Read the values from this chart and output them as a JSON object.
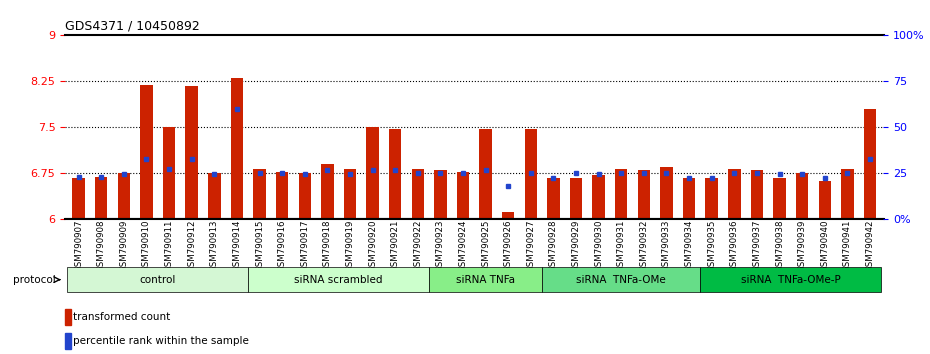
{
  "title": "GDS4371 / 10450892",
  "samples": [
    "GSM790907",
    "GSM790908",
    "GSM790909",
    "GSM790910",
    "GSM790911",
    "GSM790912",
    "GSM790913",
    "GSM790914",
    "GSM790915",
    "GSM790916",
    "GSM790917",
    "GSM790918",
    "GSM790919",
    "GSM790920",
    "GSM790921",
    "GSM790922",
    "GSM790923",
    "GSM790924",
    "GSM790925",
    "GSM790926",
    "GSM790927",
    "GSM790928",
    "GSM790929",
    "GSM790930",
    "GSM790931",
    "GSM790932",
    "GSM790933",
    "GSM790934",
    "GSM790935",
    "GSM790936",
    "GSM790937",
    "GSM790938",
    "GSM790939",
    "GSM790940",
    "GSM790941",
    "GSM790942"
  ],
  "red_values": [
    6.68,
    6.7,
    6.75,
    8.19,
    7.5,
    8.17,
    6.75,
    8.3,
    6.83,
    6.78,
    6.75,
    6.9,
    6.83,
    7.5,
    7.47,
    6.83,
    6.8,
    6.78,
    7.48,
    6.13,
    7.47,
    6.68,
    6.68,
    6.72,
    6.83,
    6.8,
    6.85,
    6.68,
    6.68,
    6.83,
    6.8,
    6.68,
    6.75,
    6.62,
    6.83,
    7.8
  ],
  "blue_values": [
    6.69,
    6.69,
    6.74,
    6.99,
    6.83,
    6.99,
    6.74,
    7.8,
    6.76,
    6.75,
    6.74,
    6.8,
    6.74,
    6.8,
    6.8,
    6.75,
    6.76,
    6.76,
    6.8,
    6.55,
    6.76,
    6.68,
    6.75,
    6.74,
    6.75,
    6.75,
    6.76,
    6.68,
    6.68,
    6.75,
    6.75,
    6.74,
    6.74,
    6.68,
    6.75,
    6.99
  ],
  "groups": [
    {
      "label": "control",
      "start": 0,
      "end": 8,
      "color": "#ccffcc"
    },
    {
      "label": "siRNA scrambled",
      "start": 8,
      "end": 16,
      "color": "#ccffcc"
    },
    {
      "label": "siRNA TNFa",
      "start": 16,
      "end": 21,
      "color": "#66ff66"
    },
    {
      "label": "siRNA  TNFa-OMe",
      "start": 21,
      "end": 28,
      "color": "#66ff66"
    },
    {
      "label": "siRNA  TNFa-OMe-P",
      "start": 28,
      "end": 36,
      "color": "#00cc00"
    }
  ],
  "ymin": 6.0,
  "ymax": 9.0,
  "yticks_left": [
    6.0,
    6.75,
    7.5,
    8.25,
    9.0
  ],
  "yticks_left_labels": [
    "6",
    "6.75",
    "7.5",
    "8.25",
    "9"
  ],
  "yticks_right": [
    0,
    25,
    50,
    75,
    100
  ],
  "yticks_right_labels": [
    "0%",
    "25",
    "50",
    "75",
    "100%"
  ],
  "dotted_lines": [
    6.75,
    7.5,
    8.25
  ],
  "bar_color": "#cc2200",
  "blue_color": "#2244cc",
  "bar_width": 0.55,
  "bg_color": "#f0f0f0"
}
